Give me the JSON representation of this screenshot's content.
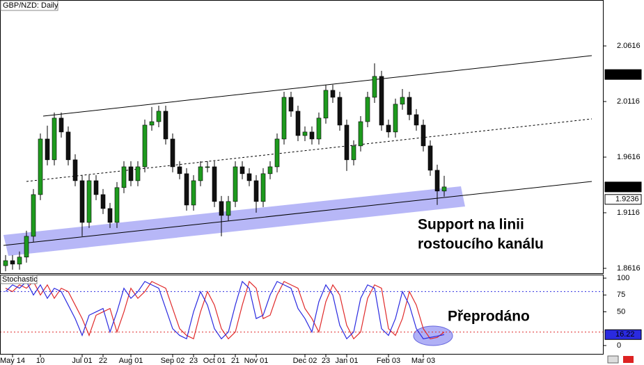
{
  "chart_data": [
    {
      "type": "candlestick",
      "title": "GBP/NZD: Daily",
      "categories": [
        null,
        "May 14",
        null,
        null,
        null,
        "10",
        null,
        null,
        null,
        null,
        null,
        "Jul 01",
        null,
        null,
        "22",
        null,
        null,
        null,
        "Aug 01",
        null,
        null,
        null,
        null,
        null,
        "Sep 02",
        null,
        null,
        "23",
        null,
        null,
        "Oct 01",
        null,
        null,
        "21",
        null,
        null,
        "Nov 01",
        null,
        null,
        null,
        null,
        null,
        null,
        "Dec 02",
        null,
        null,
        "23",
        null,
        null,
        "Jan 01",
        null,
        null,
        null,
        null,
        null,
        "Feb 03",
        null,
        null,
        null,
        null,
        "Mar 03",
        null,
        null,
        null
      ],
      "open": [
        1.864,
        1.8685,
        1.8654,
        1.8717,
        1.8904,
        1.9279,
        1.9779,
        1.9592,
        1.9967,
        1.9842,
        1.9592,
        1.9404,
        1.9029,
        1.9404,
        1.9279,
        1.9154,
        1.9029,
        1.9342,
        1.9529,
        1.9404,
        1.9529,
        1.9904,
        1.9935,
        2.0029,
        1.9779,
        1.9529,
        1.9467,
        1.9185,
        1.9404,
        1.9529,
        1.9529,
        1.9217,
        1.9092,
        1.9217,
        1.9529,
        1.9467,
        1.9404,
        1.9217,
        1.9467,
        1.9529,
        1.9779,
        2.0154,
        2.0029,
        1.981,
        1.9842,
        1.9779,
        1.9967,
        2.0217,
        2.0154,
        1.9904,
        1.9592,
        1.9717,
        1.9935,
        2.0154,
        2.0342,
        1.9904,
        1.9842,
        2.0092,
        2.0154,
        1.9998,
        1.9904,
        1.9717,
        1.9498,
        1.9311
      ],
      "high": [
        1.8735,
        1.8735,
        1.8767,
        1.8954,
        1.9329,
        1.9829,
        1.9899,
        2.0017,
        2.0017,
        1.9892,
        1.9642,
        1.9454,
        1.9454,
        1.9454,
        1.9329,
        1.9204,
        1.9392,
        1.9579,
        1.9579,
        1.9579,
        1.9954,
        2.0067,
        2.0079,
        2.0079,
        1.9829,
        1.9579,
        1.9517,
        1.9454,
        1.9579,
        1.9579,
        1.9579,
        1.9267,
        1.9267,
        1.9579,
        1.9579,
        1.9517,
        1.9454,
        1.9517,
        1.9579,
        1.9829,
        2.0204,
        2.0204,
        2.0079,
        1.9892,
        1.9892,
        2.0017,
        2.0267,
        2.0267,
        2.0204,
        1.9954,
        1.9767,
        1.9985,
        2.0204,
        2.0459,
        2.0392,
        1.9954,
        2.0142,
        2.0229,
        2.0204,
        2.0048,
        1.9954,
        1.9767,
        1.9548,
        1.9448
      ],
      "low": [
        1.859,
        1.8604,
        1.8604,
        1.8667,
        1.8854,
        1.9229,
        1.9542,
        1.9542,
        1.9792,
        1.9542,
        1.9354,
        1.8904,
        1.8979,
        1.9229,
        1.9104,
        1.8979,
        1.8979,
        1.9292,
        1.9354,
        1.9354,
        1.9479,
        1.9854,
        1.9885,
        1.9729,
        1.9479,
        1.9417,
        1.9135,
        1.9135,
        1.9354,
        1.9479,
        1.9167,
        1.8904,
        1.9042,
        1.9167,
        1.9417,
        1.9354,
        1.9117,
        1.9167,
        1.9417,
        1.9479,
        1.9729,
        1.9979,
        1.976,
        1.976,
        1.9729,
        1.9729,
        1.9917,
        2.0104,
        1.9854,
        1.9492,
        1.9542,
        1.9667,
        1.9885,
        2.0104,
        1.9854,
        1.9792,
        1.9792,
        2.0042,
        1.9948,
        1.9854,
        1.9667,
        1.9448,
        1.9186,
        1.9261
      ],
      "close": [
        1.8685,
        1.8654,
        1.8717,
        1.8904,
        1.9279,
        1.9779,
        1.9592,
        1.9967,
        1.9842,
        1.9592,
        1.9404,
        1.9029,
        1.9404,
        1.9279,
        1.9154,
        1.9029,
        1.9342,
        1.9529,
        1.9404,
        1.9529,
        1.9904,
        1.9935,
        2.0029,
        1.9779,
        1.9529,
        1.9467,
        1.9185,
        1.9404,
        1.9529,
        1.9529,
        1.9217,
        1.9092,
        1.9217,
        1.9529,
        1.9467,
        1.9404,
        1.9217,
        1.9467,
        1.9529,
        1.9779,
        2.0154,
        2.0029,
        1.981,
        1.9842,
        1.9779,
        1.9967,
        2.0217,
        2.0154,
        1.9904,
        1.9592,
        1.9717,
        1.9935,
        2.0154,
        2.0342,
        1.9904,
        1.9842,
        2.0092,
        2.0154,
        1.9998,
        1.9904,
        1.9717,
        1.9498,
        1.9311,
        1.9348
      ],
      "up_color": "#1e9a1e",
      "down_color": "#111111",
      "ylim": [
        1.8572,
        2.1029
      ],
      "yticks": [
        2.0616,
        2.0116,
        1.9616,
        1.9116,
        1.8616
      ],
      "price_markers": [
        {
          "value": 2.0359,
          "fill": "#000000",
          "text_color": "#ffffff"
        },
        {
          "value": 1.9348,
          "fill": "#000000",
          "text_color": "#ffffff"
        },
        {
          "value": 1.9236,
          "fill": "#ffffff",
          "text_color": "#000000"
        }
      ],
      "annotation": [
        "Support na linii",
        "rostoucího kanálu"
      ]
    },
    {
      "type": "line",
      "title": "Stochastic",
      "series": [
        {
          "color": "#2a2ae0",
          "values": [
            80,
            90,
            85,
            95,
            75,
            90,
            70,
            85,
            80,
            60,
            40,
            15,
            45,
            50,
            55,
            20,
            50,
            85,
            70,
            80,
            95,
            90,
            85,
            55,
            25,
            15,
            10,
            50,
            80,
            60,
            25,
            10,
            20,
            60,
            95,
            85,
            40,
            45,
            75,
            95,
            90,
            85,
            55,
            40,
            20,
            65,
            90,
            75,
            30,
            10,
            20,
            70,
            90,
            85,
            25,
            15,
            40,
            80,
            60,
            25,
            10,
            12,
            14,
            16.22
          ]
        },
        {
          "color": "#e02a2a",
          "values": [
            85,
            80,
            90,
            85,
            95,
            75,
            90,
            70,
            85,
            80,
            60,
            40,
            15,
            45,
            50,
            55,
            20,
            50,
            85,
            70,
            80,
            95,
            90,
            85,
            55,
            25,
            15,
            10,
            50,
            80,
            60,
            25,
            10,
            20,
            60,
            95,
            85,
            40,
            45,
            75,
            95,
            90,
            85,
            55,
            40,
            20,
            65,
            90,
            75,
            30,
            10,
            20,
            70,
            90,
            85,
            25,
            15,
            40,
            80,
            60,
            25,
            10,
            12,
            20
          ]
        }
      ],
      "ylim": [
        -13.4,
        105.2
      ],
      "yticks": [
        100,
        75,
        50,
        0
      ],
      "levels": [
        {
          "value": 80,
          "color": "#2a2ae0"
        },
        {
          "value": 20,
          "color": "#e02a2a"
        }
      ],
      "value_markers": [
        {
          "value": 16.22,
          "fill": "#2a2ae0",
          "text_color": "#ffffff"
        }
      ],
      "annotation": "Přeprodáno"
    }
  ]
}
